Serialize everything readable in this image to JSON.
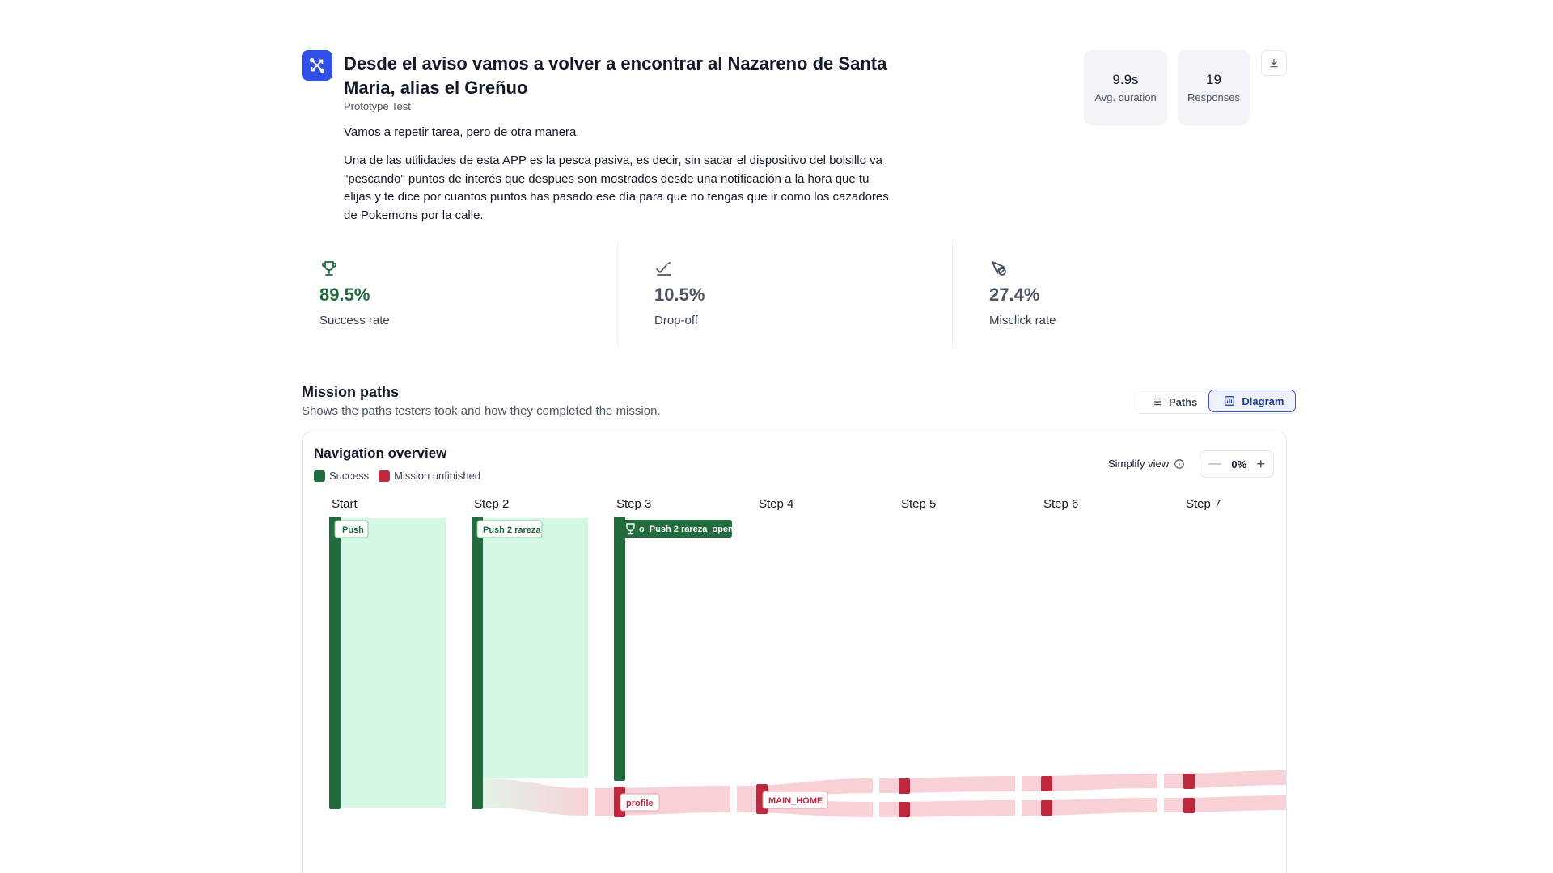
{
  "header": {
    "title": "Desde el aviso vamos a volver a encontrar al Nazareno de Santa Maria, alias el Greñuo",
    "type": "Prototype Test",
    "description_short": "Vamos a repetir tarea, pero de otra manera.",
    "description_long": "Una de las utilidades de esta APP es la pesca pasiva, es decir, sin sacar el dispositivo del bolsillo va \"pescando\" puntos de interés que despues son mostrados desde una notificación a la hora que tu elijas y te dice por cuantos puntos has pasado ese día para que no tengas que ir como los cazadores de Pokemons por la calle.",
    "stats": [
      {
        "value": "9.9s",
        "label": "Avg. duration"
      },
      {
        "value": "19",
        "label": "Responses"
      }
    ]
  },
  "metrics": [
    {
      "value": "89.5%",
      "label": "Success rate",
      "icon": "trophy-icon"
    },
    {
      "value": "10.5%",
      "label": "Drop-off",
      "icon": "drop-off-icon"
    },
    {
      "value": "27.4%",
      "label": "Misclick rate",
      "icon": "misclick-icon"
    }
  ],
  "mission_paths": {
    "title": "Mission paths",
    "subtitle": "Shows the paths testers took and how they completed the mission.",
    "toggle": {
      "paths": "Paths",
      "diagram": "Diagram",
      "active": "Diagram"
    }
  },
  "diagram": {
    "title": "Navigation overview",
    "legend": [
      {
        "label": "Success",
        "color": "#1e6b3c"
      },
      {
        "label": "Mission unfinished",
        "color": "#c0283f"
      }
    ],
    "simplify_label": "Simplify view",
    "simplify_value": "0%",
    "steps": [
      "Start",
      "Step 2",
      "Step 3",
      "Step 4",
      "Step 5",
      "Step 6",
      "Step 7"
    ],
    "node_labels": {
      "start": "Push",
      "step2": "Push 2 rareza",
      "step3_success": "o_Push 2 rareza_open",
      "step3_unfinished": "profile",
      "step4_unfinished": "MAIN_HOME"
    }
  },
  "colors": {
    "success": "#1e6b3c",
    "success_flow": "#d5f8e5",
    "unfinished": "#c0283f",
    "unfinished_flow": "#f7d1d6",
    "accent": "#2f4fe6"
  }
}
